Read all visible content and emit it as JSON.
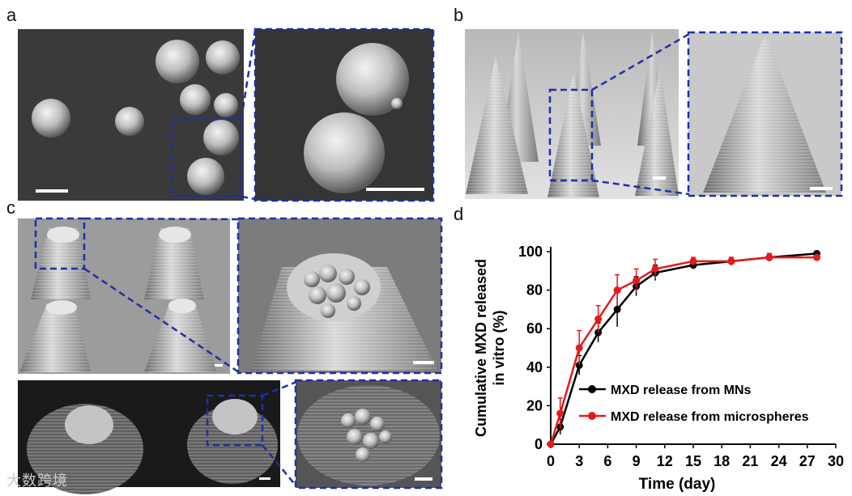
{
  "panel_labels": {
    "a": "a",
    "b": "b",
    "c": "c",
    "d": "d"
  },
  "watermark": "大数跨境",
  "chart_data": {
    "type": "line",
    "title": "",
    "xlabel": "Time (day)",
    "ylabel_line1": "Cumulative  MXD released",
    "ylabel_line2": "in vitro (%)",
    "xlim": [
      0,
      30
    ],
    "ylim": [
      0,
      100
    ],
    "xticks": [
      "0",
      "3",
      "6",
      "9",
      "12",
      "15",
      "18",
      "21",
      "24",
      "27",
      "30"
    ],
    "yticks": [
      "0",
      "20",
      "40",
      "60",
      "80",
      "100"
    ],
    "legend_position": "lower-right",
    "series": [
      {
        "name": "MXD release from MNs",
        "color": "#000000",
        "x": [
          0,
          1,
          3,
          5,
          7,
          9,
          11,
          15,
          19,
          23,
          28
        ],
        "y": [
          0,
          9,
          41,
          58,
          70,
          82,
          89,
          93,
          95,
          97,
          99
        ],
        "err": [
          0,
          4,
          5,
          5,
          9,
          5,
          4,
          2,
          2,
          2,
          1
        ]
      },
      {
        "name": "MXD release from microspheres",
        "color": "#e41a1c",
        "x": [
          0,
          1,
          3,
          5,
          7,
          9,
          11,
          15,
          19,
          23,
          28
        ],
        "y": [
          0,
          16,
          50,
          65,
          80,
          85,
          91,
          95,
          95,
          97,
          97
        ],
        "err": [
          0,
          8,
          9,
          7,
          8,
          6,
          5,
          2,
          2,
          2,
          1
        ]
      }
    ]
  }
}
